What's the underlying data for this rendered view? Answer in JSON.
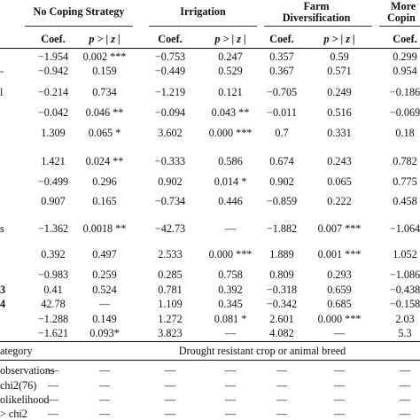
{
  "groups": {
    "no_coping": "No Coping Strategy",
    "irrigation": "Irrigation",
    "farm_div_l1": "Farm",
    "farm_div_l2": "Diversification",
    "more_l1": "More",
    "more_l2": "Copin"
  },
  "subheaders": {
    "coef": "Coef.",
    "p": "p > | z |"
  },
  "rows": [
    {
      "label": "",
      "c1": "−1.954",
      "p1": "0.002 ***",
      "c2": "−0.753",
      "p2": "0.247",
      "c3": "0.357",
      "p3": "0.59",
      "c4": "0.299"
    },
    {
      "label": "-",
      "c1": "−0.942",
      "p1": "0.159",
      "c2": "−0.449",
      "p2": "0.529",
      "c3": "0.367",
      "p3": "0.571",
      "c4": "0.954"
    },
    {
      "label": "l",
      "c1": "−0.214",
      "p1": "0.734",
      "c2": "−1.219",
      "p2": "0.121",
      "c3": "−0.705",
      "p3": "0.249",
      "c4": "−0.186"
    },
    {
      "label": "",
      "c1": "−0.042",
      "p1": "0.046 **",
      "c2": "−0.094",
      "p2": "0.043 **",
      "c3": "−0.011",
      "p3": "0.516",
      "c4": "−0.069"
    },
    {
      "label": "",
      "c1": "1.309",
      "p1": "0.065 *",
      "c2": "3.602",
      "p2": "0.000 ***",
      "c3": "0.7",
      "p3": "0.331",
      "c4": "0.18"
    },
    {
      "label": "",
      "c1": "1.421",
      "p1": "0.024 **",
      "c2": "−0.333",
      "p2": "0.586",
      "c3": "0.674",
      "p3": "0.243",
      "c4": "0.782"
    },
    {
      "label": "",
      "c1": "−0.499",
      "p1": "0.296",
      "c2": "0.902",
      "p2": "0.014 *",
      "c3": "0.902",
      "p3": "0.065",
      "c4": "0.775"
    },
    {
      "label": "",
      "c1": "0.907",
      "p1": "0.165",
      "c2": "−0.734",
      "p2": "0.446",
      "c3": "−0.859",
      "p3": "0.222",
      "c4": "0.458"
    },
    {
      "label": "s",
      "c1": "−1.362",
      "p1": "0.0018 **",
      "c2": "−42.73",
      "p2": "—",
      "c3": "−1.882",
      "p3": "0.007 ***",
      "c4": "−1.064"
    },
    {
      "label": "",
      "c1": "0.392",
      "p1": "0.497",
      "c2": "2.533",
      "p2": "0.000 ***",
      "c3": "1.889",
      "p3": "0.001 ***",
      "c4": "1.052"
    },
    {
      "label": "",
      "c1": "−0.983",
      "p1": "0.259",
      "c2": "0.285",
      "p2": "0.758",
      "c3": "0.809",
      "p3": "0.293",
      "c4": "−1.086"
    },
    {
      "label": "3",
      "c1": "0.41",
      "p1": "0.524",
      "c2": "0.781",
      "p2": "0.392",
      "c3": "−0.318",
      "p3": "0.659",
      "c4": "−0.438"
    },
    {
      "label": "4",
      "c1": "42.78",
      "p1": "—",
      "c2": "1.109",
      "p2": "0.345",
      "c3": "−0.342",
      "p3": "0.685",
      "c4": "−0.158"
    },
    {
      "label": "",
      "c1": "−1.288",
      "p1": "0.149",
      "c2": "1.272",
      "p2": "0.081 *",
      "c3": "2.601",
      "p3": "0.000 ***",
      "c4": "2.03"
    },
    {
      "label": "",
      "c1": "−1.621",
      "p1": "0.093*",
      "c2": "3.823",
      "p2": "—",
      "c3": "4.082",
      "p3": "—",
      "c4": "5.3"
    }
  ],
  "base_category": {
    "label": "ategory",
    "value": "Drought resistant crop or animal breed"
  },
  "stats": [
    {
      "label": "observations",
      "cells": [
        "—",
        "—",
        "—",
        "—",
        "—",
        "—",
        "—"
      ]
    },
    {
      "label": "chi2(76)",
      "cells": [
        "—",
        "—",
        "—",
        "—",
        "—",
        "—",
        "—"
      ]
    },
    {
      "label": "olikelihood",
      "cells": [
        "—",
        "—",
        "—",
        "—",
        "—",
        "—",
        "—"
      ]
    },
    {
      "label": "> chi2",
      "cells": [
        "—",
        "—",
        "—",
        "—",
        "—",
        "—",
        "—"
      ]
    }
  ]
}
